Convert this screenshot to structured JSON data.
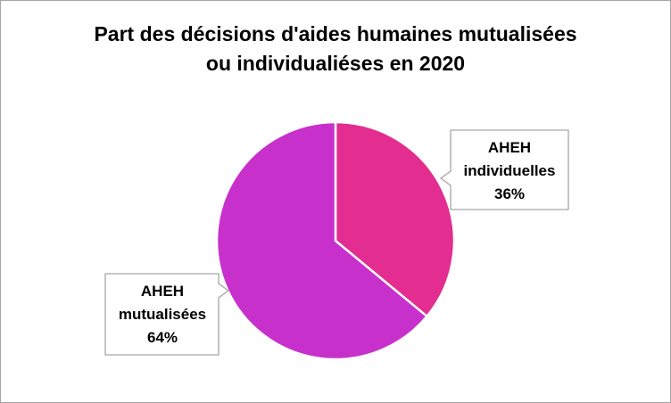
{
  "chart_data": {
    "type": "pie",
    "title_lines": [
      "Part des décisions d'aides humaines mutualisées",
      "ou individualiéses en 2020"
    ],
    "slices": [
      {
        "label_lines": [
          "AHEH",
          "individuelles"
        ],
        "percent_label": "36%",
        "value": 36,
        "color": "#e32d91"
      },
      {
        "label_lines": [
          "AHEH",
          "mutualisées"
        ],
        "percent_label": "64%",
        "value": 64,
        "color": "#c830cc"
      }
    ],
    "start_angle_deg": 0,
    "direction": "clockwise",
    "legend": "none"
  }
}
